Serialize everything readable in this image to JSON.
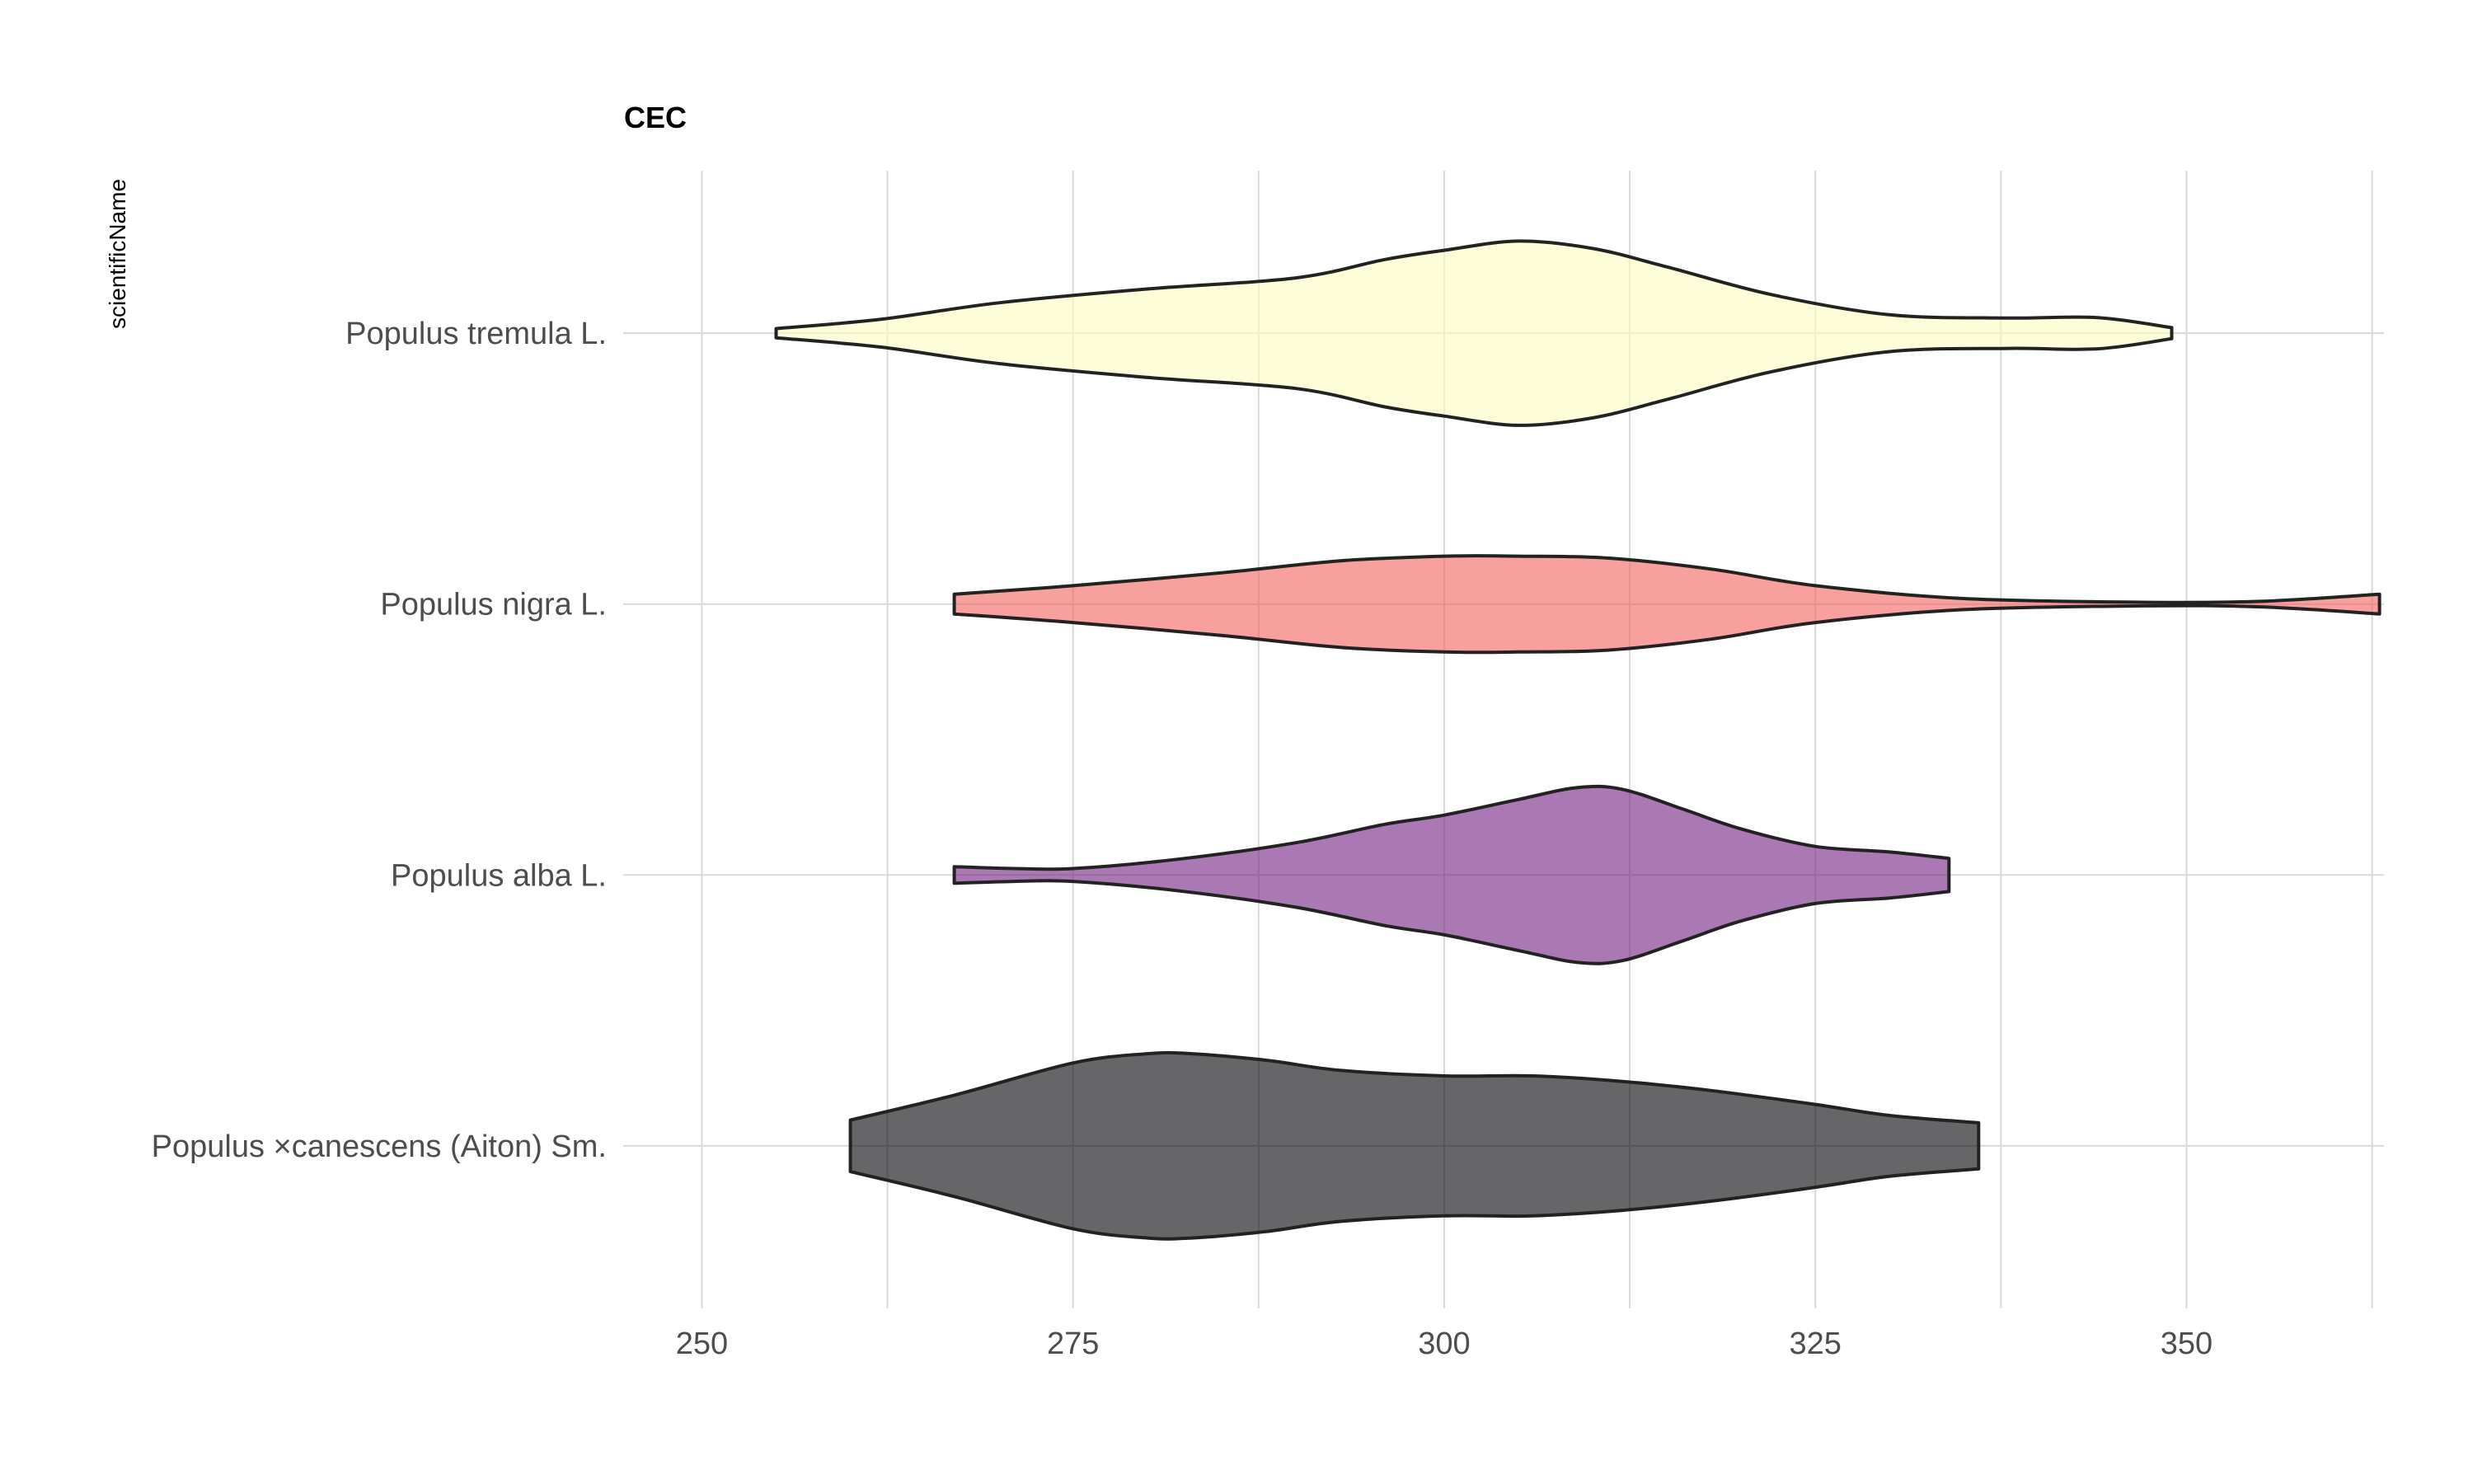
{
  "chart_data": {
    "type": "violin",
    "title": "CEC",
    "xlabel": "",
    "ylabel": "scientificName",
    "xlim": [
      244.7,
      363.3
    ],
    "xticks": [
      250,
      275,
      300,
      325,
      350
    ],
    "grid": true,
    "legend": "none",
    "categories": [
      "Populus ×canescens (Aiton) Sm.",
      "Populus alba L.",
      "Populus nigra L.",
      "Populus tremula L."
    ],
    "series": [
      {
        "category": "Populus tremula L.",
        "color": "#FCFDBF",
        "density": [
          [
            255,
            0.05
          ],
          [
            262,
            0.15
          ],
          [
            270,
            0.33
          ],
          [
            280,
            0.48
          ],
          [
            290,
            0.6
          ],
          [
            296,
            0.8
          ],
          [
            300,
            0.9
          ],
          [
            305,
            1.0
          ],
          [
            310,
            0.92
          ],
          [
            315,
            0.72
          ],
          [
            322,
            0.42
          ],
          [
            330,
            0.2
          ],
          [
            338,
            0.165
          ],
          [
            344,
            0.17
          ],
          [
            349,
            0.06
          ]
        ]
      },
      {
        "category": "Populus nigra L.",
        "color": "#F1605D",
        "density": [
          [
            267,
            0.107
          ],
          [
            275,
            0.2
          ],
          [
            285,
            0.34
          ],
          [
            293,
            0.47
          ],
          [
            300,
            0.52
          ],
          [
            305,
            0.52
          ],
          [
            311,
            0.5
          ],
          [
            318,
            0.38
          ],
          [
            325,
            0.2
          ],
          [
            335,
            0.06
          ],
          [
            347,
            0.02
          ],
          [
            355,
            0.03
          ],
          [
            363,
            0.107
          ]
        ]
      },
      {
        "category": "Populus alba L.",
        "color": "#721F81",
        "density": [
          [
            267,
            0.09
          ],
          [
            271,
            0.07
          ],
          [
            275,
            0.07
          ],
          [
            282,
            0.17
          ],
          [
            290,
            0.35
          ],
          [
            296,
            0.55
          ],
          [
            300,
            0.65
          ],
          [
            305,
            0.82
          ],
          [
            309,
            0.95
          ],
          [
            312,
            0.93
          ],
          [
            316,
            0.72
          ],
          [
            320,
            0.5
          ],
          [
            325,
            0.31
          ],
          [
            330,
            0.25
          ],
          [
            334,
            0.18
          ]
        ]
      },
      {
        "category": "Populus ×canescens (Aiton) Sm.",
        "color": "#000004",
        "density": [
          [
            260,
            0.28
          ],
          [
            267,
            0.55
          ],
          [
            275,
            0.9
          ],
          [
            280,
            1.0
          ],
          [
            283,
            1.0
          ],
          [
            288,
            0.93
          ],
          [
            293,
            0.82
          ],
          [
            300,
            0.76
          ],
          [
            306,
            0.76
          ],
          [
            312,
            0.7
          ],
          [
            318,
            0.6
          ],
          [
            325,
            0.45
          ],
          [
            330,
            0.33
          ],
          [
            336,
            0.25
          ]
        ]
      }
    ]
  }
}
